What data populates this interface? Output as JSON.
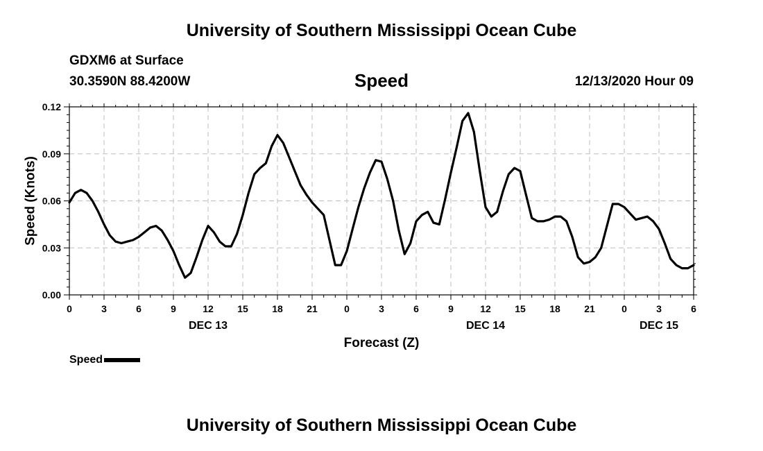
{
  "header": {
    "title": "University of Southern Mississippi Ocean Cube",
    "station": "GDXM6 at Surface",
    "coords": "30.3590N 88.4200W",
    "chart_title": "Speed",
    "timestamp": "12/13/2020 Hour 09"
  },
  "footer": {
    "title": "University of Southern Mississippi Ocean Cube"
  },
  "legend": {
    "label": "Speed",
    "color": "#000000"
  },
  "chart_data": {
    "type": "line",
    "title": "Speed",
    "xlabel": "Forecast (Z)",
    "ylabel": "Speed (Knots)",
    "x_units": "hours since DEC 13 00Z",
    "xlim": [
      0,
      54
    ],
    "ylim": [
      0,
      0.12
    ],
    "yticks": [
      0,
      0.03,
      0.06,
      0.09,
      0.12
    ],
    "ytick_labels": [
      "0.00",
      "0.03",
      "0.06",
      "0.09",
      "0.12"
    ],
    "xticks": [
      0,
      3,
      6,
      9,
      12,
      15,
      18,
      21,
      24,
      27,
      30,
      33,
      36,
      39,
      42,
      45,
      48,
      51,
      54
    ],
    "xtick_labels": [
      "0",
      "3",
      "6",
      "9",
      "12",
      "15",
      "18",
      "21",
      "0",
      "3",
      "6",
      "9",
      "12",
      "15",
      "18",
      "21",
      "0",
      "3",
      "6"
    ],
    "date_labels": [
      {
        "x": 12,
        "label": "DEC 13"
      },
      {
        "x": 36,
        "label": "DEC 14"
      },
      {
        "x": 51,
        "label": "DEC 15"
      }
    ],
    "grid": true,
    "series": [
      {
        "name": "Speed",
        "color": "#000000",
        "x": [
          0,
          0.5,
          1,
          1.5,
          2,
          2.5,
          3,
          3.5,
          4,
          4.5,
          5,
          5.5,
          6,
          6.5,
          7,
          7.5,
          8,
          8.5,
          9,
          9.5,
          10,
          10.5,
          11,
          11.5,
          12,
          12.5,
          13,
          13.5,
          14,
          14.5,
          15,
          15.5,
          16,
          16.5,
          17,
          17.5,
          18,
          18.5,
          19,
          19.5,
          20,
          20.5,
          21,
          21.5,
          22,
          22.5,
          23,
          23.5,
          24,
          24.5,
          25,
          25.5,
          26,
          26.5,
          27,
          27.5,
          28,
          28.5,
          29,
          29.5,
          30,
          30.5,
          31,
          31.5,
          32,
          32.5,
          33,
          33.5,
          34,
          34.5,
          35,
          35.5,
          36,
          36.5,
          37,
          37.5,
          38,
          38.5,
          39,
          39.5,
          40,
          40.5,
          41,
          41.5,
          42,
          42.5,
          43,
          43.5,
          44,
          44.5,
          45,
          45.5,
          46,
          46.5,
          47,
          47.5,
          48,
          48.5,
          49,
          49.5,
          50,
          50.5,
          51,
          51.5,
          52,
          52.5,
          53,
          53.5,
          54
        ],
        "values": [
          0.059,
          0.065,
          0.067,
          0.065,
          0.06,
          0.053,
          0.045,
          0.038,
          0.034,
          0.033,
          0.034,
          0.035,
          0.037,
          0.04,
          0.043,
          0.044,
          0.041,
          0.035,
          0.028,
          0.019,
          0.011,
          0.014,
          0.024,
          0.035,
          0.044,
          0.04,
          0.034,
          0.031,
          0.031,
          0.039,
          0.051,
          0.065,
          0.077,
          0.081,
          0.084,
          0.095,
          0.102,
          0.097,
          0.088,
          0.079,
          0.07,
          0.064,
          0.059,
          0.055,
          0.051,
          0.035,
          0.019,
          0.019,
          0.028,
          0.042,
          0.056,
          0.068,
          0.078,
          0.086,
          0.085,
          0.074,
          0.06,
          0.041,
          0.026,
          0.033,
          0.047,
          0.051,
          0.053,
          0.046,
          0.045,
          0.061,
          0.078,
          0.094,
          0.111,
          0.116,
          0.104,
          0.079,
          0.056,
          0.05,
          0.053,
          0.066,
          0.077,
          0.081,
          0.079,
          0.064,
          0.049,
          0.047,
          0.047,
          0.048,
          0.05,
          0.05,
          0.047,
          0.037,
          0.024,
          0.02,
          0.021,
          0.024,
          0.03,
          0.044,
          0.058,
          0.058,
          0.056,
          0.052,
          0.048,
          0.049,
          0.05,
          0.047,
          0.042,
          0.033,
          0.023,
          0.019,
          0.017,
          0.017,
          0.019
        ]
      }
    ]
  }
}
